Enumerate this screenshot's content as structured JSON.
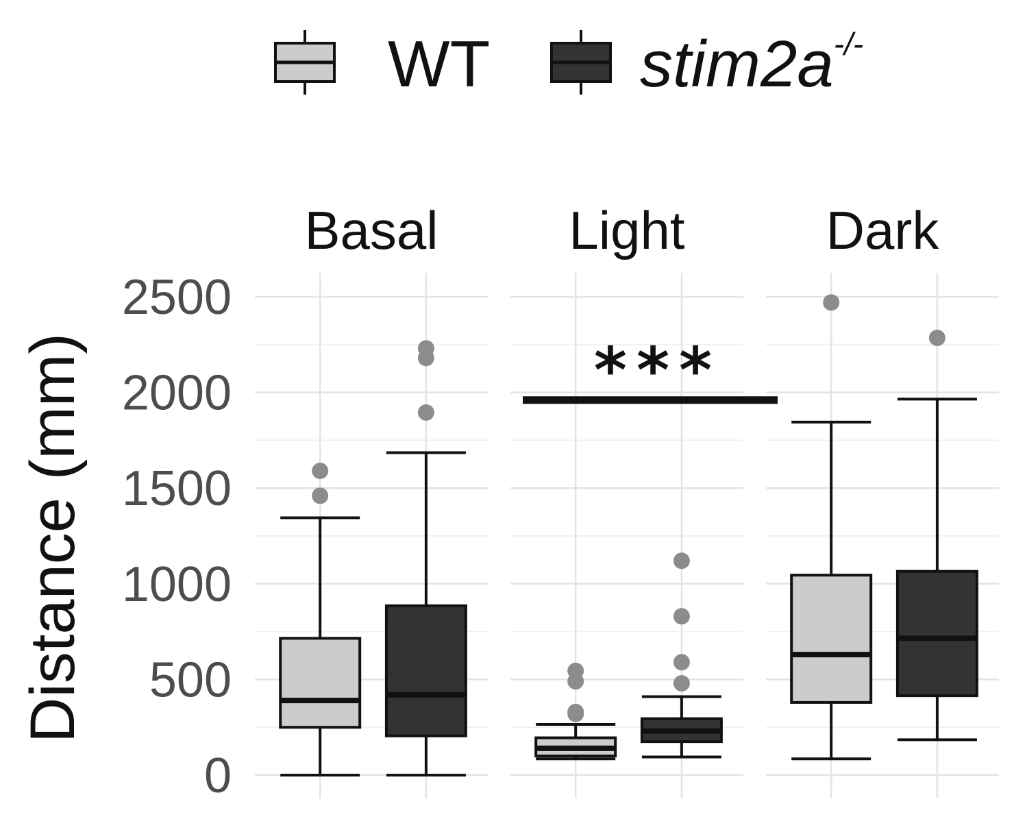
{
  "chart_data": {
    "type": "boxplot",
    "legend": {
      "position": "top",
      "entries": [
        {
          "key": "wt",
          "label": "WT",
          "italic": false,
          "color": "#cccccc"
        },
        {
          "key": "mut",
          "label": "stim2a",
          "superscript": "-/-",
          "italic": true,
          "color": "#333333"
        }
      ]
    },
    "ylabel": "Distance (mm)",
    "xlabel": "",
    "ylim": [
      -100,
      2620
    ],
    "yticks": [
      0,
      500,
      1000,
      1500,
      2000,
      2500
    ],
    "grid": true,
    "facets": [
      {
        "label": "Basal",
        "boxes": [
          {
            "series": "wt",
            "min": 0,
            "q1": 250,
            "median": 390,
            "q3": 715,
            "max": 1345,
            "outliers": [
              1460,
              1590
            ]
          },
          {
            "series": "mut",
            "min": 0,
            "q1": 205,
            "median": 420,
            "q3": 885,
            "max": 1685,
            "outliers": [
              1895,
              2180,
              2230
            ]
          }
        ]
      },
      {
        "label": "Light",
        "boxes": [
          {
            "series": "wt",
            "min": 85,
            "q1": 100,
            "median": 140,
            "q3": 195,
            "max": 265,
            "outliers": [
              320,
              330,
              490,
              545
            ]
          },
          {
            "series": "mut",
            "min": 95,
            "q1": 175,
            "median": 230,
            "q3": 295,
            "max": 410,
            "outliers": [
              480,
              590,
              830,
              1120
            ]
          }
        ],
        "significance": {
          "label": "***",
          "y": 1960
        }
      },
      {
        "label": "Dark",
        "boxes": [
          {
            "series": "wt",
            "min": 85,
            "q1": 380,
            "median": 630,
            "q3": 1045,
            "max": 1845,
            "outliers": [
              2470
            ]
          },
          {
            "series": "mut",
            "min": 185,
            "q1": 415,
            "median": 715,
            "q3": 1065,
            "max": 1965,
            "outliers": [
              2285
            ]
          }
        ]
      }
    ]
  }
}
